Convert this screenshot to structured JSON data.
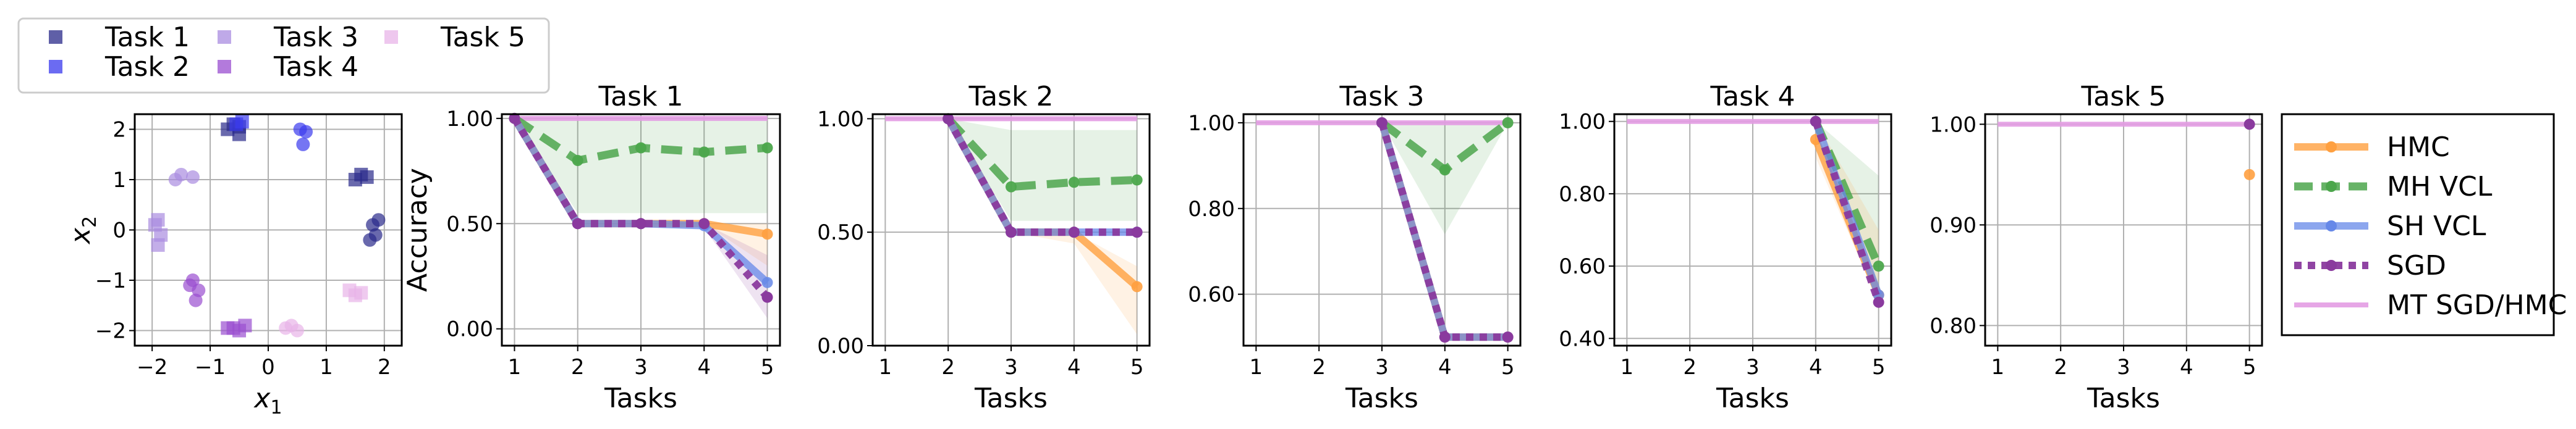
{
  "colors": {
    "hmc": "#ffa040",
    "mh_vcl": "#4ca64c",
    "sh_vcl": "#6688e8",
    "sgd": "#8a3a9e",
    "mt": "#e39ce3",
    "grid": "#b0b0b0",
    "task1": "#2a2a8a",
    "task2": "#3a3aee",
    "task3": "#a98ce0",
    "task4": "#9a4ed0",
    "task5": "#e8b4e8"
  },
  "data_legend": {
    "entries": [
      "Task 1",
      "Task 2",
      "Task 3",
      "Task 4",
      "Task 5"
    ]
  },
  "chart_data": [
    {
      "type": "scatter",
      "xlabel": "x",
      "xlabel_sub": "1",
      "ylabel": "x",
      "ylabel_sub": "2",
      "xlim": [
        -2.3,
        2.3
      ],
      "ylim": [
        -2.3,
        2.3
      ],
      "xticks": [
        -2,
        -1,
        0,
        1,
        2
      ],
      "yticks": [
        2,
        1,
        0,
        -1,
        -2
      ],
      "tick_labels": [
        "−2",
        "−1",
        "0",
        "1",
        "2"
      ],
      "grid": true,
      "series": [
        {
          "name": "Task 1",
          "color_key": "task1",
          "groups": [
            {
              "marker": "square",
              "points": [
                [
                  -0.6,
                  2.1
                ],
                [
                  -0.5,
                  1.9
                ],
                [
                  -0.7,
                  2.0
                ],
                [
                  -0.5,
                  2.05
                ]
              ]
            },
            {
              "marker": "square",
              "points": [
                [
                  1.5,
                  1.0
                ],
                [
                  1.6,
                  1.1
                ],
                [
                  1.7,
                  1.05
                ]
              ]
            },
            {
              "marker": "circle",
              "points": [
                [
                  1.8,
                  0.1
                ],
                [
                  1.85,
                  -0.1
                ],
                [
                  1.75,
                  -0.2
                ],
                [
                  1.9,
                  0.2
                ]
              ]
            }
          ]
        },
        {
          "name": "Task 2",
          "color_key": "task2",
          "groups": [
            {
              "marker": "square",
              "points": [
                [
                  -0.45,
                  2.15
                ],
                [
                  -0.55,
                  2.1
                ]
              ]
            },
            {
              "marker": "circle",
              "points": [
                [
                  0.55,
                  2.0
                ],
                [
                  0.6,
                  1.7
                ],
                [
                  0.65,
                  1.95
                ]
              ]
            }
          ]
        },
        {
          "name": "Task 3",
          "color_key": "task3",
          "groups": [
            {
              "marker": "square",
              "points": [
                [
                  -1.9,
                  0.2
                ],
                [
                  -1.85,
                  -0.1
                ],
                [
                  -1.95,
                  0.1
                ],
                [
                  -1.9,
                  -0.3
                ]
              ]
            },
            {
              "marker": "circle",
              "points": [
                [
                  -1.6,
                  1.0
                ],
                [
                  -1.3,
                  1.05
                ],
                [
                  -1.5,
                  1.1
                ]
              ]
            }
          ]
        },
        {
          "name": "Task 4",
          "color_key": "task4",
          "groups": [
            {
              "marker": "circle",
              "points": [
                [
                  -1.2,
                  -1.2
                ],
                [
                  -1.3,
                  -1.0
                ],
                [
                  -1.25,
                  -1.4
                ],
                [
                  -1.35,
                  -1.1
                ]
              ]
            },
            {
              "marker": "square",
              "points": [
                [
                  -0.6,
                  -1.95
                ],
                [
                  -0.4,
                  -1.9
                ],
                [
                  -0.5,
                  -2.0
                ],
                [
                  -0.7,
                  -1.95
                ]
              ]
            }
          ]
        },
        {
          "name": "Task 5",
          "color_key": "task5",
          "groups": [
            {
              "marker": "circle",
              "points": [
                [
                  0.3,
                  -1.95
                ],
                [
                  0.5,
                  -2.0
                ],
                [
                  0.4,
                  -1.9
                ]
              ]
            },
            {
              "marker": "square",
              "points": [
                [
                  1.4,
                  -1.2
                ],
                [
                  1.6,
                  -1.25
                ],
                [
                  1.5,
                  -1.3
                ]
              ]
            }
          ]
        }
      ]
    },
    {
      "type": "line",
      "title": "Task 1",
      "xlabel": "Tasks",
      "ylabel": "Accuracy",
      "x": [
        1,
        2,
        3,
        4,
        5
      ],
      "xlim": [
        0.8,
        5.2
      ],
      "ylim": [
        -0.08,
        1.02
      ],
      "yticks": [
        1.0,
        0.5,
        0.0
      ],
      "ytick_labels": [
        "1.00",
        "0.50",
        "0.00"
      ],
      "grid": true,
      "bands": {
        "mh_vcl": {
          "lower": [
            1.0,
            0.55,
            0.55,
            0.55,
            0.55
          ],
          "upper": [
            1.0,
            1.0,
            1.0,
            1.0,
            1.0
          ]
        },
        "hmc": {
          "lower": [
            1.0,
            0.5,
            0.5,
            0.5,
            0.3
          ],
          "upper": [
            1.0,
            0.5,
            0.5,
            0.5,
            0.5
          ]
        },
        "sgd": {
          "lower": [
            1.0,
            0.5,
            0.5,
            0.48,
            0.05
          ],
          "upper": [
            1.0,
            0.5,
            0.5,
            0.5,
            0.35
          ]
        }
      },
      "series": [
        {
          "name": "MT SGD/HMC",
          "values": [
            1.0,
            1.0,
            1.0,
            1.0,
            1.0
          ]
        },
        {
          "name": "MH VCL",
          "values": [
            1.0,
            0.8,
            0.86,
            0.84,
            0.86
          ]
        },
        {
          "name": "HMC",
          "values": [
            1.0,
            0.5,
            0.5,
            0.5,
            0.45
          ]
        },
        {
          "name": "SH VCL",
          "values": [
            1.0,
            0.5,
            0.5,
            0.49,
            0.22
          ]
        },
        {
          "name": "SGD",
          "values": [
            1.0,
            0.5,
            0.5,
            0.5,
            0.15
          ]
        }
      ]
    },
    {
      "type": "line",
      "title": "Task 2",
      "xlabel": "Tasks",
      "ylabel": "",
      "x": [
        2,
        3,
        4,
        5
      ],
      "xlim": [
        0.8,
        5.2
      ],
      "ylim": [
        0.0,
        1.02
      ],
      "yticks": [
        1.0,
        0.5,
        0.0
      ],
      "ytick_labels": [
        "1.00",
        "0.50",
        "0.00"
      ],
      "grid": true,
      "bands": {
        "mh_vcl": {
          "lower": [
            1.0,
            0.55,
            0.55,
            0.55
          ],
          "upper": [
            1.0,
            0.95,
            0.95,
            0.95
          ]
        },
        "hmc": {
          "lower": [
            1.0,
            0.5,
            0.45,
            0.05
          ],
          "upper": [
            1.0,
            0.5,
            0.5,
            0.35
          ]
        }
      },
      "series": [
        {
          "name": "MT SGD/HMC",
          "x": [
            1,
            2,
            3,
            4,
            5
          ],
          "values": [
            1.0,
            1.0,
            1.0,
            1.0,
            1.0
          ]
        },
        {
          "name": "MH VCL",
          "values": [
            1.0,
            0.7,
            0.72,
            0.73
          ]
        },
        {
          "name": "HMC",
          "values": [
            1.0,
            0.5,
            0.5,
            0.26
          ]
        },
        {
          "name": "SH VCL",
          "values": [
            1.0,
            0.5,
            0.5,
            0.5
          ]
        },
        {
          "name": "SGD",
          "values": [
            1.0,
            0.5,
            0.5,
            0.5
          ]
        }
      ]
    },
    {
      "type": "line",
      "title": "Task 3",
      "xlabel": "Tasks",
      "ylabel": "",
      "x": [
        3,
        4,
        5
      ],
      "xlim": [
        0.8,
        5.2
      ],
      "ylim": [
        0.48,
        1.02
      ],
      "yticks": [
        1.0,
        0.8,
        0.6
      ],
      "ytick_labels": [
        "1.00",
        "0.80",
        "0.60"
      ],
      "grid": true,
      "bands": {
        "mh_vcl": {
          "lower": [
            1.0,
            0.74,
            1.0
          ],
          "upper": [
            1.0,
            1.0,
            1.0
          ]
        }
      },
      "series": [
        {
          "name": "MT SGD/HMC",
          "x": [
            1,
            2,
            3,
            4,
            5
          ],
          "values": [
            1.0,
            1.0,
            1.0,
            1.0,
            1.0
          ]
        },
        {
          "name": "MH VCL",
          "values": [
            1.0,
            0.89,
            1.0
          ]
        },
        {
          "name": "HMC",
          "values": [
            1.0,
            0.5,
            0.5
          ]
        },
        {
          "name": "SH VCL",
          "values": [
            1.0,
            0.5,
            0.5
          ]
        },
        {
          "name": "SGD",
          "values": [
            1.0,
            0.5,
            0.5
          ]
        }
      ]
    },
    {
      "type": "line",
      "title": "Task 4",
      "xlabel": "Tasks",
      "ylabel": "",
      "x": [
        4,
        5
      ],
      "xlim": [
        0.8,
        5.2
      ],
      "ylim": [
        0.38,
        1.02
      ],
      "yticks": [
        1.0,
        0.8,
        0.6,
        0.4
      ],
      "ytick_labels": [
        "1.00",
        "0.80",
        "0.60",
        "0.40"
      ],
      "grid": true,
      "bands": {
        "mh_vcl": {
          "lower": [
            1.0,
            0.5
          ],
          "upper": [
            1.0,
            0.85
          ]
        },
        "hmc": {
          "lower": [
            0.9,
            0.5
          ],
          "upper": [
            1.0,
            0.7
          ]
        }
      },
      "series": [
        {
          "name": "MT SGD/HMC",
          "x": [
            1,
            2,
            3,
            4,
            5
          ],
          "values": [
            1.0,
            1.0,
            1.0,
            1.0,
            1.0
          ]
        },
        {
          "name": "MH VCL",
          "values": [
            1.0,
            0.6
          ]
        },
        {
          "name": "HMC",
          "values": [
            0.95,
            0.52
          ]
        },
        {
          "name": "SH VCL",
          "values": [
            1.0,
            0.52
          ]
        },
        {
          "name": "SGD",
          "values": [
            1.0,
            0.5
          ]
        }
      ]
    },
    {
      "type": "line",
      "title": "Task 5",
      "xlabel": "Tasks",
      "ylabel": "",
      "x": [
        5
      ],
      "xlim": [
        0.8,
        5.2
      ],
      "ylim": [
        0.78,
        1.01
      ],
      "yticks": [
        1.0,
        0.9,
        0.8
      ],
      "ytick_labels": [
        "1.00",
        "0.90",
        "0.80"
      ],
      "grid": true,
      "series": [
        {
          "name": "MT SGD/HMC",
          "x": [
            1,
            2,
            3,
            4,
            5
          ],
          "values": [
            1.0,
            1.0,
            1.0,
            1.0,
            1.0
          ]
        },
        {
          "name": "HMC",
          "values": [
            0.95
          ]
        },
        {
          "name": "SGD",
          "values": [
            1.0
          ]
        }
      ]
    }
  ],
  "method_legend": {
    "placement": "right",
    "entries": [
      {
        "label": "HMC",
        "key": "hmc"
      },
      {
        "label": "MH VCL",
        "key": "mh_vcl"
      },
      {
        "label": "SH VCL",
        "key": "sh_vcl"
      },
      {
        "label": "SGD",
        "key": "sgd"
      },
      {
        "label": "MT SGD/HMC",
        "key": "mt"
      }
    ]
  }
}
